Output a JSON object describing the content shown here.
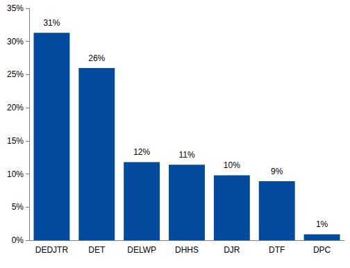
{
  "chart_data": {
    "type": "bar",
    "categories": [
      "DEDJTR",
      "DET",
      "DELWP",
      "DHHS",
      "DJR",
      "DTF",
      "DPC"
    ],
    "values": [
      31.3,
      26,
      11.8,
      11.4,
      9.8,
      8.9,
      0.9
    ],
    "value_labels": [
      "31%",
      "26%",
      "12%",
      "11%",
      "10%",
      "9%",
      "1%"
    ],
    "color": "#024a9e",
    "ylim": [
      0,
      35
    ],
    "yticks": [
      {
        "value": 0,
        "label": "0%"
      },
      {
        "value": 5,
        "label": "5%"
      },
      {
        "value": 10,
        "label": "10%"
      },
      {
        "value": 15,
        "label": "15%"
      },
      {
        "value": 20,
        "label": "20%"
      },
      {
        "value": 25,
        "label": "25%"
      },
      {
        "value": 30,
        "label": "30%"
      },
      {
        "value": 35,
        "label": "35%"
      }
    ],
    "grid": false,
    "data_labels": true
  }
}
